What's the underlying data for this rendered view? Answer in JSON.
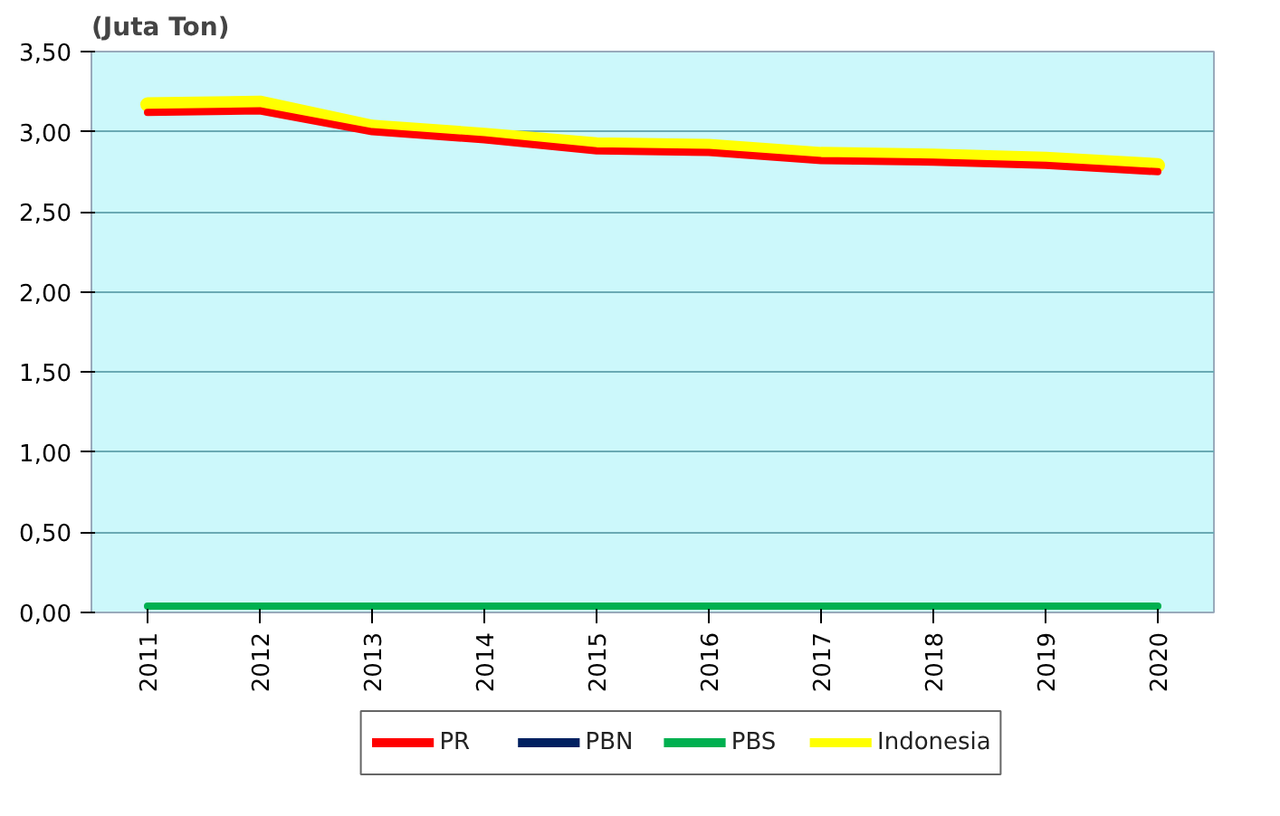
{
  "chart_data": {
    "type": "line",
    "ylabel": "(Juta Ton)",
    "categories": [
      "2011",
      "2012",
      "2013",
      "2014",
      "2015",
      "2016",
      "2017",
      "2018",
      "2019",
      "2020"
    ],
    "series": [
      {
        "name": "PR",
        "color": "#ff0000",
        "values": [
          3.12,
          3.13,
          3.0,
          2.95,
          2.88,
          2.87,
          2.82,
          2.81,
          2.79,
          2.75
        ]
      },
      {
        "name": "PBN",
        "color": "#002060",
        "values": [
          null,
          null,
          null,
          null,
          null,
          null,
          null,
          null,
          null,
          null
        ]
      },
      {
        "name": "PBS",
        "color": "#00b050",
        "values": [
          0.04,
          0.04,
          0.04,
          0.04,
          0.04,
          0.04,
          0.04,
          0.04,
          0.04,
          0.04
        ]
      },
      {
        "name": "Indonesia",
        "color": "#ffff00",
        "values": [
          3.17,
          3.18,
          3.03,
          2.98,
          2.92,
          2.91,
          2.86,
          2.85,
          2.83,
          2.79
        ]
      }
    ],
    "ylim": [
      0,
      3.5
    ],
    "yticks": [
      {
        "value": 0,
        "label": "0,00"
      },
      {
        "value": 0.5,
        "label": "0,50"
      },
      {
        "value": 1,
        "label": "1,00"
      },
      {
        "value": 1.5,
        "label": "1,50"
      },
      {
        "value": 2,
        "label": "2,00"
      },
      {
        "value": 2.5,
        "label": "2,50"
      },
      {
        "value": 3,
        "label": "3,00"
      },
      {
        "value": 3.5,
        "label": "3,50"
      }
    ],
    "grid": "y",
    "legend": "bottom",
    "line_style": "solid",
    "marker": "none"
  }
}
